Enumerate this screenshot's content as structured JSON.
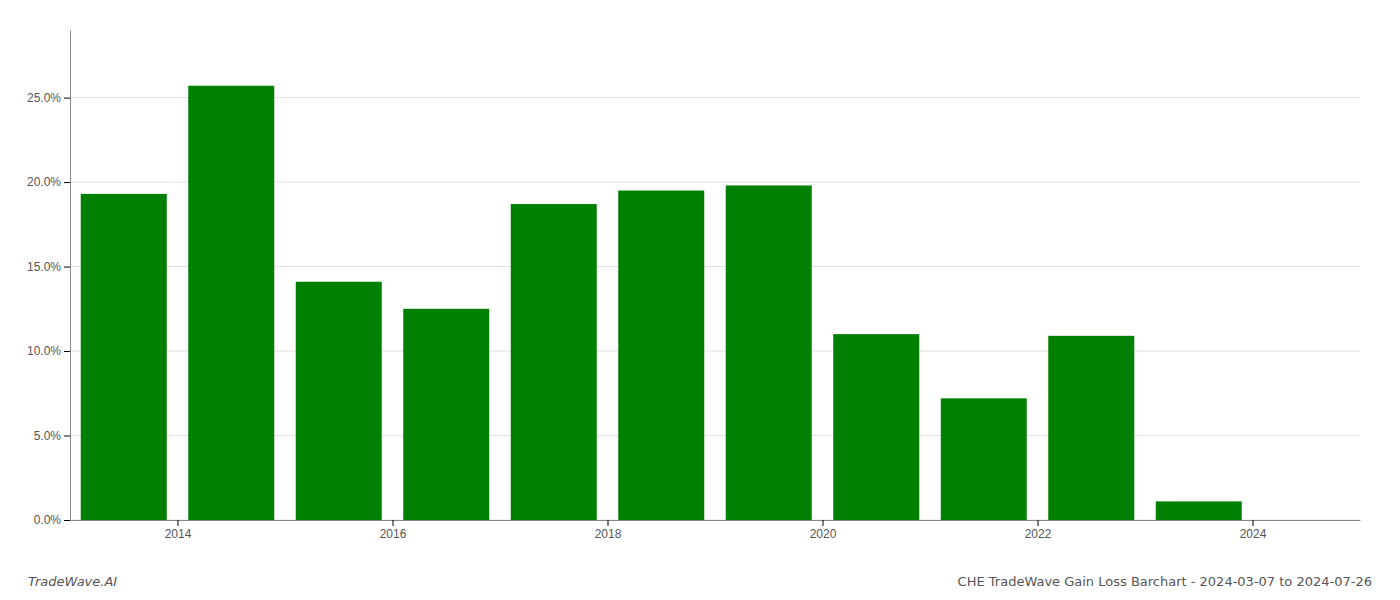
{
  "chart_data": {
    "type": "bar",
    "title": "CHE TradeWave Gain Loss Barchart - 2024-03-07 to 2024-07-26",
    "annotations": [
      "TradeWave.AI"
    ],
    "x": [
      2013.5,
      2014.5,
      2015.5,
      2016.5,
      2017.5,
      2018.5,
      2019.5,
      2020.5,
      2021.5,
      2022.5,
      2023.5
    ],
    "values": [
      0.193,
      0.257,
      0.141,
      0.125,
      0.187,
      0.195,
      0.198,
      0.11,
      0.072,
      0.109,
      0.011
    ],
    "color": "#008000",
    "xlim": [
      2013.0,
      2025.0
    ],
    "xticks": [
      2014,
      2016,
      2018,
      2020,
      2022,
      2024
    ],
    "ylim": [
      0,
      0.29
    ],
    "yticks": [
      {
        "value": 0.0,
        "label": "0.0%"
      },
      {
        "value": 0.05,
        "label": "5.0%"
      },
      {
        "value": 0.1,
        "label": "10.0%"
      },
      {
        "value": 0.15,
        "label": "15.0%"
      },
      {
        "value": 0.2,
        "label": "20.0%"
      },
      {
        "value": 0.25,
        "label": "25.0%"
      }
    ],
    "grid": true
  }
}
